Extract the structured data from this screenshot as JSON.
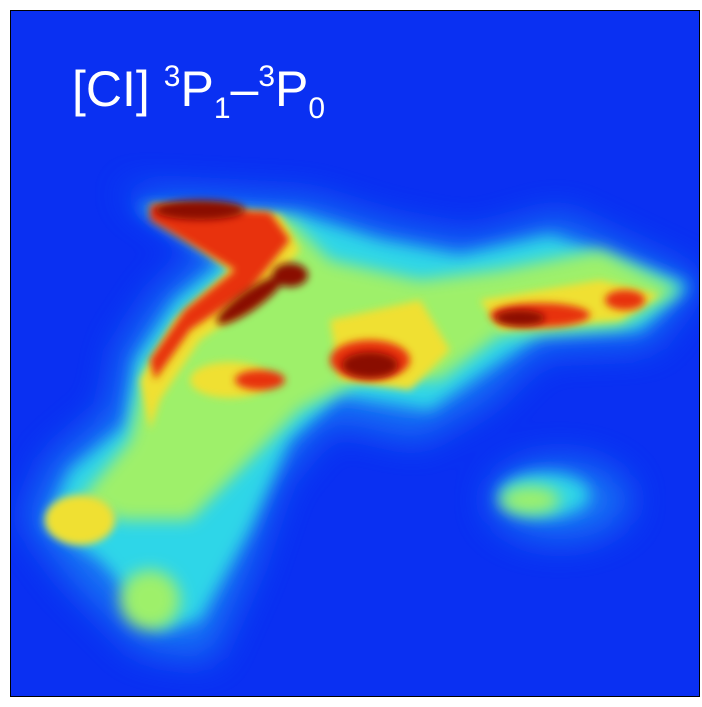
{
  "label": {
    "species": "[CI]",
    "upper_sup": "3",
    "upper": "P",
    "upper_sub": "1",
    "dash": "–",
    "lower_sup": "3",
    "lower": "P",
    "lower_sub": "0"
  }
}
